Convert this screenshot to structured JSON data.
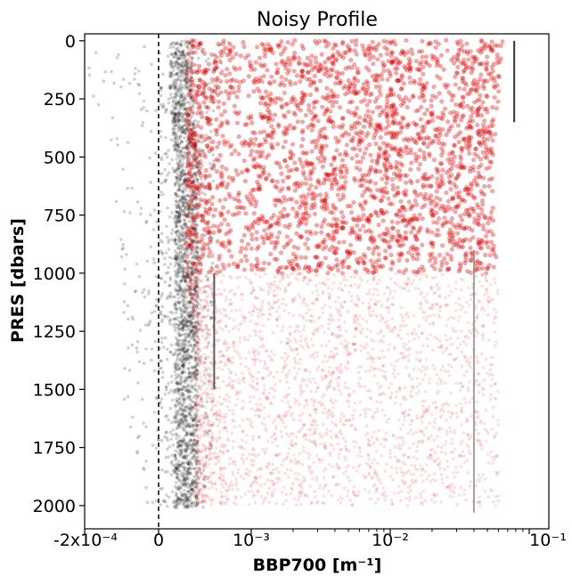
{
  "chart_data": {
    "type": "scatter",
    "title": "Noisy Profile",
    "xlabel": "BBP700 [m⁻¹]",
    "ylabel": "PRES [dbars]",
    "x_scale": "symlog",
    "xlim": [
      -0.0002,
      0.1
    ],
    "ylim": [
      2100,
      -30
    ],
    "y_inverted": true,
    "x_ticks": [
      -0.0002,
      0,
      0.001,
      0.01,
      0.1
    ],
    "x_tick_labels": [
      "-2x10⁻⁴",
      "0",
      "10⁻³",
      "10⁻²",
      "10⁻¹"
    ],
    "y_ticks": [
      0,
      250,
      500,
      750,
      1000,
      1250,
      1500,
      1750,
      2000
    ],
    "y_tick_labels": [
      "0",
      "250",
      "500",
      "750",
      "1000",
      "1250",
      "1500",
      "1750",
      "2000"
    ],
    "grid": false,
    "reference_line": {
      "x": 0,
      "style": "dashed",
      "color": "#000000"
    },
    "series": [
      {
        "color": "#000000",
        "alpha": 0.06,
        "description_points": [
          {
            "pres": 0,
            "bbp_core": 0.00025,
            "bbp_spread": [
              -0.0002,
              0.0008
            ]
          },
          {
            "pres": 250,
            "bbp_core": 0.00025,
            "bbp_spread": [
              -0.00019,
              0.0006
            ]
          },
          {
            "pres": 500,
            "bbp_core": 0.0003,
            "bbp_spread": [
              -0.00015,
              0.0006
            ]
          },
          {
            "pres": 1000,
            "bbp_core": 0.0003,
            "bbp_spread": [
              -0.0001,
              0.0006
            ]
          },
          {
            "pres": 1250,
            "bbp_core": 0.0003,
            "bbp_spread": [
              -0.0001,
              0.0006
            ]
          },
          {
            "pres": 1500,
            "bbp_core": 0.0003,
            "bbp_spread": [
              -0.0001,
              0.00065
            ]
          },
          {
            "pres": 2000,
            "bbp_core": 0.0003,
            "bbp_spread": [
              -5e-05,
              0.0005
            ]
          }
        ]
      },
      {
        "color": "#dd0000",
        "alpha": 0.1,
        "description_points": [
          {
            "pres": 0,
            "bbp_range": [
              0.0003,
              0.065
            ]
          },
          {
            "pres": 250,
            "bbp_range": [
              0.0003,
              0.06
            ]
          },
          {
            "pres": 500,
            "bbp_range": [
              0.0003,
              0.055
            ]
          },
          {
            "pres": 750,
            "bbp_range": [
              0.0003,
              0.055
            ]
          },
          {
            "pres": 1000,
            "bbp_range": [
              0.0003,
              0.06
            ]
          },
          {
            "pres": 1250,
            "bbp_range": [
              0.0004,
              0.06
            ]
          },
          {
            "pres": 1500,
            "bbp_range": [
              0.0004,
              0.06
            ]
          },
          {
            "pres": 2000,
            "bbp_range": [
              0.0004,
              0.06
            ]
          }
        ]
      }
    ],
    "vertical_streaks": [
      {
        "x": 0.078,
        "pres_range": [
          0,
          350
        ],
        "color": "#000000"
      },
      {
        "x": 0.04,
        "pres_range": [
          900,
          2030
        ],
        "color": "#888888"
      },
      {
        "x": 0.0006,
        "pres_range": [
          1000,
          1500
        ],
        "color": "#333333"
      }
    ]
  }
}
